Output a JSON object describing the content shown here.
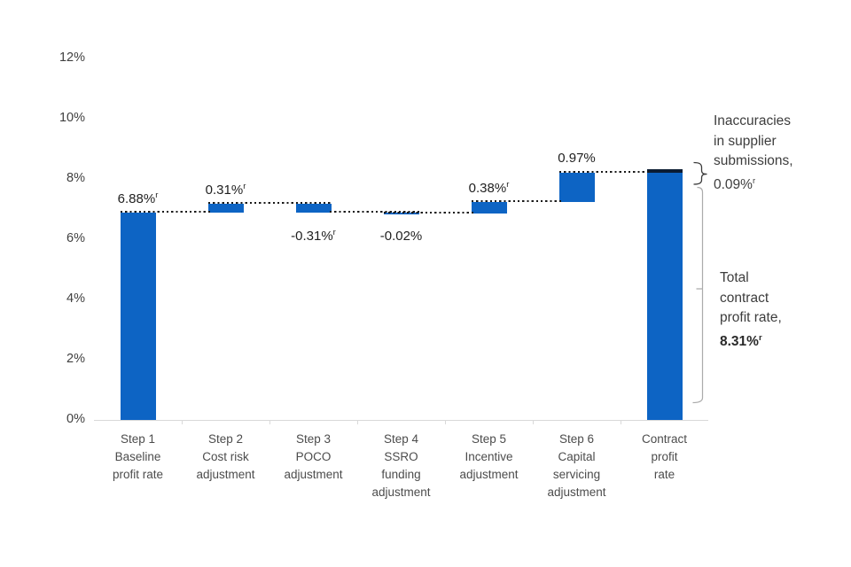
{
  "chart_data": {
    "type": "waterfall",
    "title": "",
    "unit": "%",
    "y_axis": {
      "range": [
        0,
        12
      ],
      "gridlines": false,
      "ticks": [
        {
          "label": "0%",
          "value": 0
        },
        {
          "label": "2%",
          "value": 2
        },
        {
          "label": "4%",
          "value": 4
        },
        {
          "label": "6%",
          "value": 6
        },
        {
          "label": "8%",
          "value": 8
        },
        {
          "label": "10%",
          "value": 10
        },
        {
          "label": "12%",
          "value": 12
        }
      ]
    },
    "bars": [
      {
        "name": "step1-baseline-profit-rate",
        "category": [
          "Step 1",
          "Baseline",
          "profit rate"
        ],
        "start": 0,
        "end": 6.88,
        "value": "6.88%",
        "sup": "r",
        "value_pos": "above"
      },
      {
        "name": "step2-cost-risk-adjustment",
        "category": [
          "Step 2",
          "Cost risk",
          "adjustment"
        ],
        "start": 6.88,
        "end": 7.19,
        "value": "0.31%",
        "sup": "r",
        "value_pos": "above"
      },
      {
        "name": "step3-poco-adjustment",
        "category": [
          "Step 3",
          "POCO",
          "adjustment"
        ],
        "start": 7.19,
        "end": 6.88,
        "value": "-0.31%",
        "sup": "r",
        "value_pos": "below"
      },
      {
        "name": "step4-ssro-funding-adjustment",
        "category": [
          "Step 4",
          "SSRO",
          "funding",
          "adjustment"
        ],
        "start": 6.88,
        "end": 6.86,
        "value": "-0.02%",
        "sup": "",
        "value_pos": "below"
      },
      {
        "name": "step5-incentive-adjustment",
        "category": [
          "Step 5",
          "Incentive",
          "adjustment"
        ],
        "start": 6.86,
        "end": 7.24,
        "value": "0.38%",
        "sup": "r",
        "value_pos": "above"
      },
      {
        "name": "step6-capital-servicing-adjustment",
        "category": [
          "Step 6",
          "Capital",
          "servicing",
          "adjustment"
        ],
        "start": 7.24,
        "end": 8.21,
        "value": "0.97%",
        "sup": "",
        "value_pos": "above"
      },
      {
        "name": "contract-profit-rate-total",
        "category": [
          "Contract",
          "profit",
          "rate"
        ],
        "start": 0,
        "end": 8.22,
        "cap_end": 8.31,
        "value": "",
        "sup": "",
        "value_pos": "none"
      }
    ],
    "connectors": [
      {
        "from": 0,
        "to": 1,
        "level": 6.88
      },
      {
        "from": 1,
        "to": 2,
        "level": 7.19
      },
      {
        "from": 2,
        "to": 3,
        "level": 6.88
      },
      {
        "from": 3,
        "to": 4,
        "level": 6.86
      },
      {
        "from": 4,
        "to": 5,
        "level": 7.24
      },
      {
        "from": 5,
        "to": 6,
        "level": 8.21
      }
    ],
    "annotations": [
      {
        "name": "inaccuracies",
        "lines": [
          "Inaccuracies",
          "in supplier",
          "submissions,"
        ],
        "value": "0.09%",
        "sup": "r",
        "bold_value": false
      },
      {
        "name": "total",
        "lines": [
          "Total",
          "contract",
          "profit rate,"
        ],
        "value": "8.31%",
        "sup": "r",
        "bold_value": true
      }
    ],
    "colors": {
      "bar": "#0d64c4",
      "cap": "#0b1c33",
      "connector": "#1a1a1a",
      "axis_line": "#d9d9d9",
      "tick_text": "#3f3f3f",
      "category_text": "#4c4c4c",
      "value_text": "#1f1f1f",
      "bracket_small": "#3a3a3a",
      "bracket_large": "#ababab"
    }
  }
}
